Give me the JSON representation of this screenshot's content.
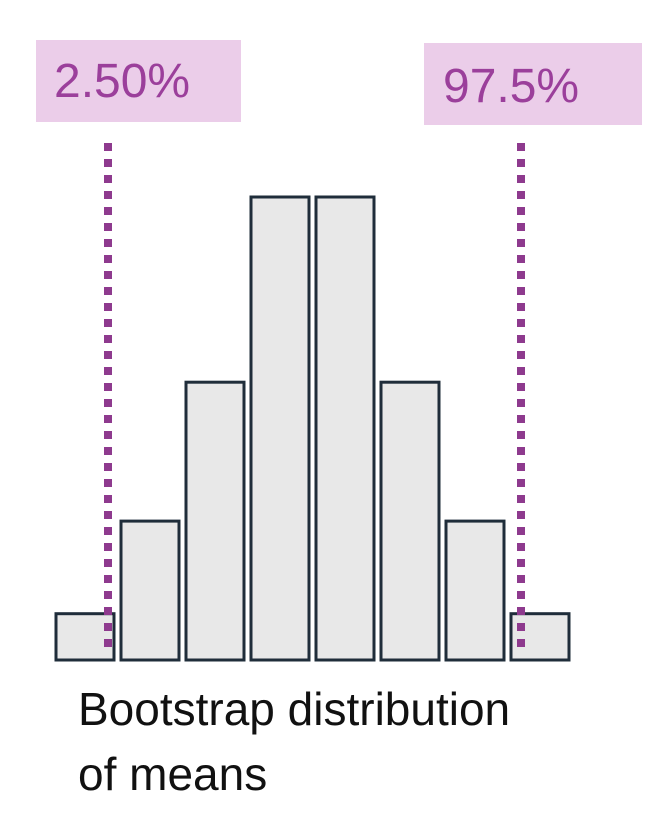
{
  "chart_data": {
    "type": "histogram",
    "values": [
      1,
      3,
      6,
      10,
      10,
      6,
      3,
      1
    ],
    "color": "#e8e8e8",
    "annotations": [
      {
        "label": "2.50%"
      },
      {
        "label": "97.5%"
      }
    ],
    "caption": [
      "Bootstrap distribution",
      "of means"
    ]
  }
}
